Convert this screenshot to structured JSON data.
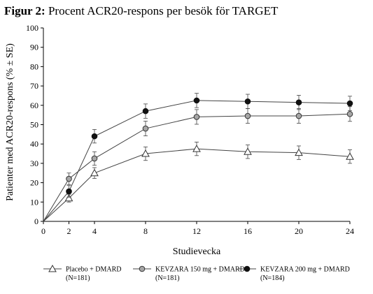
{
  "figure": {
    "label": "Figur 2:",
    "title": "Procent ACR20-respons per besök för TARGET"
  },
  "chart_data": {
    "type": "line",
    "xlabel": "Studievecka",
    "ylabel": "Patienter med ACR20-respons (% ± SE)",
    "x": [
      0,
      2,
      4,
      8,
      12,
      16,
      20,
      24
    ],
    "xlim": [
      0,
      24
    ],
    "ylim": [
      0,
      100
    ],
    "xticks": [
      0,
      2,
      4,
      8,
      12,
      16,
      20,
      24
    ],
    "yticks": [
      0,
      10,
      20,
      30,
      40,
      50,
      60,
      70,
      80,
      90,
      100
    ],
    "grid": false,
    "legend_position": "bottom",
    "series": [
      {
        "name": "Placebo + DMARD",
        "n_label": "(N=181)",
        "marker": "open-triangle",
        "color": "#555555",
        "values": [
          0,
          12,
          25,
          35,
          37.5,
          36,
          35.5,
          33.5
        ],
        "se": [
          0,
          2,
          2.8,
          3.5,
          3.5,
          3.5,
          3.5,
          3.5
        ]
      },
      {
        "name": "KEVZARA 150 mg + DMARD",
        "n_label": "(N=181)",
        "marker": "gray-circle",
        "color": "#a6a6a6",
        "values": [
          0,
          22,
          32.5,
          48,
          54,
          54.5,
          54.5,
          55.5
        ],
        "se": [
          0,
          3,
          3.5,
          3.8,
          3.8,
          3.8,
          3.8,
          3.8
        ]
      },
      {
        "name": "KEVZARA 200 mg + DMARD",
        "n_label": "(N=184)",
        "marker": "black-circle",
        "color": "#111111",
        "values": [
          0,
          15.5,
          44,
          57,
          62.5,
          62,
          61.5,
          61
        ],
        "se": [
          0,
          3,
          3.5,
          3.7,
          3.7,
          3.7,
          3.7,
          3.7
        ]
      }
    ]
  }
}
